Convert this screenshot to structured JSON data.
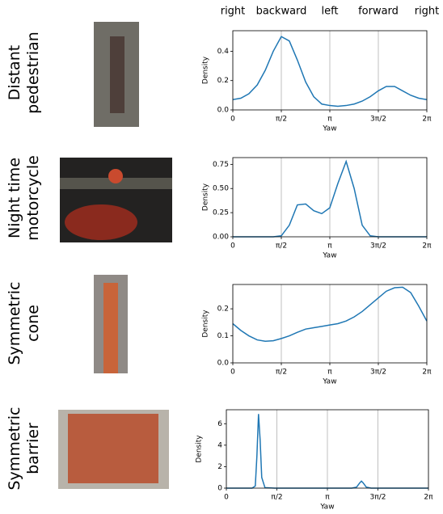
{
  "header": [
    "right",
    "backward",
    "left",
    "forward",
    "right"
  ],
  "chart_data": [
    {
      "type": "line",
      "label": [
        "Distant",
        "pedestrian"
      ],
      "xlabel": "Yaw",
      "ylabel": "Density",
      "color": "#1f77b4",
      "grid": "x",
      "x": [
        0,
        0.26,
        0.52,
        0.79,
        1.05,
        1.31,
        1.57,
        1.83,
        2.09,
        2.36,
        2.62,
        2.88,
        3.14,
        3.4,
        3.67,
        3.93,
        4.19,
        4.45,
        4.71,
        4.97,
        5.24,
        5.5,
        5.76,
        6.02,
        6.28
      ],
      "values": [
        0.07,
        0.08,
        0.11,
        0.17,
        0.27,
        0.4,
        0.5,
        0.47,
        0.34,
        0.19,
        0.09,
        0.04,
        0.03,
        0.025,
        0.03,
        0.04,
        0.06,
        0.09,
        0.13,
        0.16,
        0.16,
        0.13,
        0.1,
        0.08,
        0.07
      ],
      "xlim": [
        0,
        6.2832
      ],
      "xticks": [
        0,
        {
          "value": 1.5708,
          "label": "π/2"
        },
        {
          "value": 3.1416,
          "label": "π"
        },
        {
          "value": 4.7124,
          "label": "3π/2"
        },
        {
          "value": 6.2832,
          "label": "2π"
        }
      ],
      "ylim": [
        0,
        0.54
      ],
      "yticks": [
        {
          "value": 0,
          "label": "0.0"
        },
        {
          "value": 0.2,
          "label": "0.2"
        },
        {
          "value": 0.4,
          "label": "0.4"
        }
      ]
    },
    {
      "type": "line",
      "label": [
        "Night time",
        "motorcycle"
      ],
      "xlabel": "Yaw",
      "ylabel": "Density",
      "color": "#1f77b4",
      "grid": "x",
      "x": [
        0,
        0.26,
        0.52,
        0.79,
        1.05,
        1.31,
        1.57,
        1.83,
        2.09,
        2.36,
        2.62,
        2.88,
        3.14,
        3.4,
        3.67,
        3.93,
        4.19,
        4.45,
        4.71,
        4.97,
        5.24,
        5.5,
        5.76,
        6.02,
        6.28
      ],
      "values": [
        0,
        0,
        0,
        0,
        0,
        0,
        0.01,
        0.12,
        0.33,
        0.34,
        0.27,
        0.24,
        0.3,
        0.55,
        0.78,
        0.5,
        0.12,
        0.01,
        0,
        0,
        0,
        0,
        0,
        0,
        0
      ],
      "xlim": [
        0,
        6.2832
      ],
      "xticks": [
        0,
        {
          "value": 1.5708,
          "label": "π/2"
        },
        {
          "value": 3.1416,
          "label": "π"
        },
        {
          "value": 4.7124,
          "label": "3π/2"
        },
        {
          "value": 6.2832,
          "label": "2π"
        }
      ],
      "ylim": [
        0,
        0.82
      ],
      "yticks": [
        {
          "value": 0,
          "label": "0.00"
        },
        0.25,
        {
          "value": 0.5,
          "label": "0.50"
        },
        0.75
      ]
    },
    {
      "type": "line",
      "label": [
        "Symmetric",
        "cone"
      ],
      "xlabel": "Yaw",
      "ylabel": "Density",
      "color": "#1f77b4",
      "grid": "x",
      "x": [
        0,
        0.26,
        0.52,
        0.79,
        1.05,
        1.31,
        1.57,
        1.83,
        2.09,
        2.36,
        2.62,
        2.88,
        3.14,
        3.4,
        3.67,
        3.93,
        4.19,
        4.45,
        4.71,
        4.97,
        5.24,
        5.5,
        5.76,
        6.02,
        6.28
      ],
      "values": [
        0.145,
        0.12,
        0.1,
        0.085,
        0.08,
        0.082,
        0.09,
        0.1,
        0.113,
        0.125,
        0.13,
        0.135,
        0.14,
        0.145,
        0.155,
        0.17,
        0.19,
        0.215,
        0.24,
        0.265,
        0.278,
        0.28,
        0.26,
        0.21,
        0.155
      ],
      "xlim": [
        0,
        6.2832
      ],
      "xticks": [
        0,
        {
          "value": 1.5708,
          "label": "π/2"
        },
        {
          "value": 3.1416,
          "label": "π"
        },
        {
          "value": 4.7124,
          "label": "3π/2"
        },
        {
          "value": 6.2832,
          "label": "2π"
        }
      ],
      "ylim": [
        0,
        0.29
      ],
      "yticks": [
        {
          "value": 0,
          "label": "0.0"
        },
        0.1,
        0.2
      ]
    },
    {
      "type": "line",
      "label": [
        "Symmetric",
        "barrier"
      ],
      "xlabel": "Yaw",
      "ylabel": "Density",
      "color": "#1f77b4",
      "grid": "x",
      "x": [
        0,
        0.5,
        0.8,
        0.9,
        0.95,
        1.0,
        1.05,
        1.1,
        1.2,
        1.5,
        2,
        3,
        3.9,
        4.05,
        4.15,
        4.2,
        4.25,
        4.35,
        4.5,
        5,
        6.28
      ],
      "values": [
        0,
        0,
        0,
        0.2,
        3.0,
        6.9,
        4.5,
        1.0,
        0.05,
        0,
        0,
        0,
        0,
        0.1,
        0.5,
        0.65,
        0.5,
        0.1,
        0,
        0,
        0
      ],
      "xlim": [
        0,
        6.2832
      ],
      "xticks": [
        0,
        {
          "value": 1.5708,
          "label": "π/2"
        },
        {
          "value": 3.1416,
          "label": "π"
        },
        {
          "value": 4.7124,
          "label": "3π/2"
        },
        {
          "value": 6.2832,
          "label": "2π"
        }
      ],
      "ylim": [
        0,
        7.3
      ],
      "yticks": [
        0,
        2,
        4,
        6
      ]
    }
  ]
}
